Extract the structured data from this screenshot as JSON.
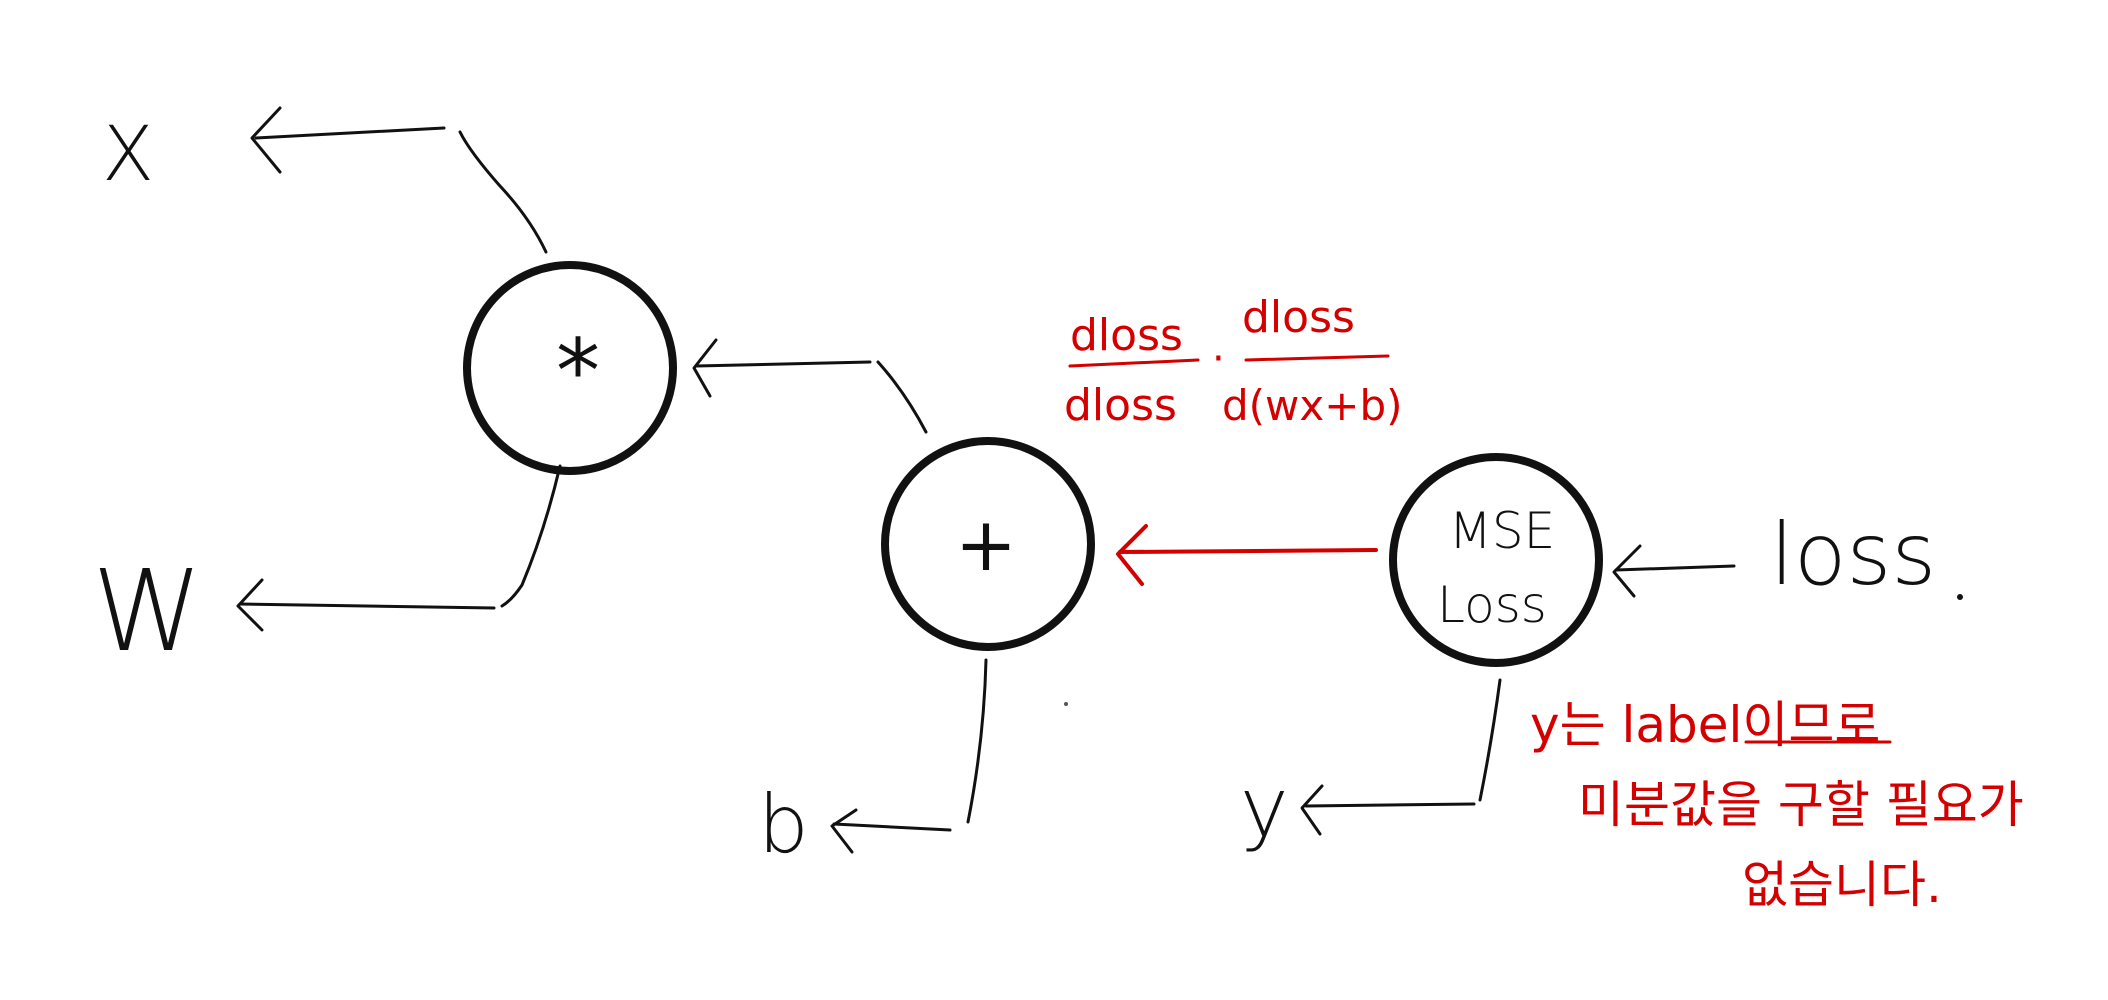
{
  "colors": {
    "ink": "#111111",
    "annotation": "#d40000",
    "background": "#ffffff"
  },
  "nodes": {
    "multiply": {
      "symbol": "*"
    },
    "add": {
      "symbol": "+"
    },
    "mse": {
      "line1": "MSE",
      "line2": "Loss"
    }
  },
  "variables": {
    "x": "X",
    "w": "W",
    "b": "b",
    "y": "y",
    "loss": "loss"
  },
  "gradient": {
    "num1": "dloss",
    "den1": "dloss",
    "dot": "·",
    "num2": "dloss",
    "den2": "d(wx+b)"
  },
  "note": {
    "line1": "y는 label이므로",
    "line2": "미분값을 구할 필요가",
    "line3": "없습니다."
  }
}
